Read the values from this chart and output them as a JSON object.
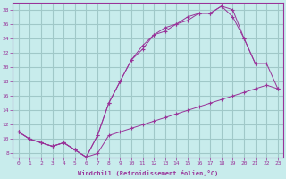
{
  "xlabel": "Windchill (Refroidissement éolien,°C)",
  "ylabel": "",
  "bg_color": "#c8ecec",
  "grid_color": "#a0c8c8",
  "line_color": "#993399",
  "xlim": [
    -0.5,
    23.5
  ],
  "ylim": [
    7.5,
    29.0
  ],
  "xticks": [
    0,
    1,
    2,
    3,
    4,
    5,
    6,
    7,
    8,
    9,
    10,
    11,
    12,
    13,
    14,
    15,
    16,
    17,
    18,
    19,
    20,
    21,
    22,
    23
  ],
  "yticks": [
    8,
    10,
    12,
    14,
    16,
    18,
    20,
    22,
    24,
    26,
    28
  ],
  "line1_x": [
    0,
    1,
    2,
    3,
    4,
    5,
    6,
    7,
    8,
    9,
    10,
    11,
    12,
    13,
    14,
    15,
    16,
    17,
    18,
    19,
    20,
    21,
    22,
    23
  ],
  "line1_y": [
    11.0,
    10.0,
    9.5,
    9.0,
    9.5,
    8.5,
    7.5,
    8.0,
    10.5,
    11.0,
    11.5,
    12.0,
    12.5,
    13.0,
    13.5,
    14.0,
    14.5,
    15.0,
    15.5,
    16.0,
    16.5,
    17.0,
    17.5,
    17.0
  ],
  "line2_x": [
    0,
    1,
    2,
    3,
    4,
    5,
    6,
    7,
    8,
    9,
    10,
    11,
    12,
    13,
    14,
    15,
    16,
    17,
    18,
    19,
    20,
    21,
    22,
    23
  ],
  "line2_y": [
    11.0,
    10.0,
    9.5,
    9.0,
    9.5,
    8.5,
    7.5,
    10.5,
    15.0,
    18.0,
    21.0,
    22.5,
    24.5,
    25.5,
    26.0,
    27.0,
    27.5,
    27.5,
    28.5,
    27.0,
    24.0,
    20.5,
    null,
    null
  ],
  "line3_x": [
    0,
    1,
    2,
    3,
    4,
    5,
    6,
    7,
    8,
    9,
    10,
    11,
    12,
    13,
    14,
    15,
    16,
    17,
    18,
    19,
    20,
    21,
    22,
    23
  ],
  "line3_y": [
    11.0,
    10.0,
    9.5,
    9.0,
    9.5,
    8.5,
    7.5,
    10.5,
    15.0,
    18.0,
    21.0,
    23.0,
    24.5,
    25.0,
    26.0,
    26.5,
    27.5,
    27.5,
    28.5,
    28.0,
    24.0,
    20.5,
    20.5,
    17.0
  ]
}
